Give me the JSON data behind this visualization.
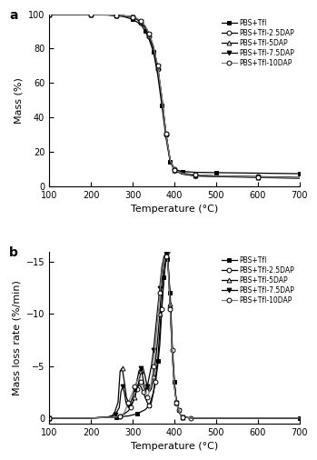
{
  "xlabel": "Temperature (°C)",
  "ylabel_a": "Mass (%)",
  "ylabel_b": "Mass loss rate (%/min)",
  "xlim": [
    100,
    700
  ],
  "ylim_a": [
    0,
    100
  ],
  "ylim_b": [
    -16,
    0.5
  ],
  "xticks": [
    100,
    200,
    300,
    400,
    500,
    600,
    700
  ],
  "yticks_a": [
    0,
    20,
    40,
    60,
    80,
    100
  ],
  "yticks_b": [
    -15,
    -10,
    -5,
    0
  ],
  "legend_labels": [
    "PBS+Tfl",
    "PBS+Tfl-2.5DAP",
    "PBS+Tfl-5DAP",
    "PBS+Tfl-7.5DAP",
    "PBS+Tfl-10DAP"
  ],
  "markers": [
    "s",
    "o",
    "^",
    "v",
    "o"
  ],
  "fillstyles": [
    "full",
    "none",
    "none",
    "full",
    "none"
  ],
  "colors": [
    "black",
    "black",
    "black",
    "black",
    "gray"
  ],
  "series_a": {
    "PBS+Tfl": [
      [
        100,
        99.8
      ],
      [
        150,
        99.8
      ],
      [
        200,
        99.7
      ],
      [
        240,
        99.5
      ],
      [
        260,
        99.2
      ],
      [
        280,
        98.5
      ],
      [
        300,
        97.0
      ],
      [
        320,
        94.0
      ],
      [
        330,
        90.0
      ],
      [
        340,
        85.0
      ],
      [
        350,
        78.0
      ],
      [
        360,
        65.0
      ],
      [
        370,
        47.0
      ],
      [
        380,
        28.0
      ],
      [
        390,
        14.0
      ],
      [
        400,
        9.5
      ],
      [
        420,
        8.5
      ],
      [
        450,
        8.0
      ],
      [
        500,
        7.8
      ],
      [
        600,
        7.5
      ],
      [
        700,
        7.2
      ]
    ],
    "PBS+Tfl-2.5DAP": [
      [
        100,
        99.9
      ],
      [
        150,
        99.9
      ],
      [
        200,
        99.8
      ],
      [
        240,
        99.6
      ],
      [
        260,
        99.3
      ],
      [
        280,
        99.0
      ],
      [
        300,
        98.2
      ],
      [
        310,
        97.0
      ],
      [
        320,
        95.0
      ],
      [
        330,
        92.0
      ],
      [
        340,
        87.0
      ],
      [
        350,
        80.0
      ],
      [
        360,
        68.0
      ],
      [
        370,
        50.0
      ],
      [
        380,
        30.0
      ],
      [
        390,
        15.0
      ],
      [
        400,
        10.0
      ],
      [
        420,
        7.5
      ],
      [
        450,
        6.5
      ],
      [
        500,
        6.0
      ],
      [
        600,
        5.5
      ],
      [
        700,
        5.0
      ]
    ],
    "PBS+Tfl-5DAP": [
      [
        100,
        99.9
      ],
      [
        150,
        99.9
      ],
      [
        200,
        99.8
      ],
      [
        240,
        99.6
      ],
      [
        260,
        99.3
      ],
      [
        280,
        99.0
      ],
      [
        300,
        98.3
      ],
      [
        310,
        97.2
      ],
      [
        320,
        95.5
      ],
      [
        330,
        92.5
      ],
      [
        340,
        87.5
      ],
      [
        350,
        80.5
      ],
      [
        360,
        69.0
      ],
      [
        370,
        51.0
      ],
      [
        380,
        30.5
      ],
      [
        390,
        15.0
      ],
      [
        400,
        9.5
      ],
      [
        420,
        7.0
      ],
      [
        450,
        6.0
      ],
      [
        500,
        5.5
      ],
      [
        600,
        5.0
      ],
      [
        700,
        4.5
      ]
    ],
    "PBS+Tfl-7.5DAP": [
      [
        100,
        99.9
      ],
      [
        150,
        99.9
      ],
      [
        200,
        99.8
      ],
      [
        240,
        99.6
      ],
      [
        260,
        99.4
      ],
      [
        280,
        99.1
      ],
      [
        300,
        98.4
      ],
      [
        310,
        97.4
      ],
      [
        320,
        95.8
      ],
      [
        330,
        93.0
      ],
      [
        340,
        88.0
      ],
      [
        350,
        81.0
      ],
      [
        360,
        69.5
      ],
      [
        370,
        51.5
      ],
      [
        380,
        30.0
      ],
      [
        390,
        14.5
      ],
      [
        400,
        9.0
      ],
      [
        420,
        7.0
      ],
      [
        450,
        5.9
      ],
      [
        500,
        5.7
      ],
      [
        600,
        5.3
      ],
      [
        700,
        4.8
      ]
    ],
    "PBS+Tfl-10DAP": [
      [
        100,
        99.9
      ],
      [
        150,
        99.9
      ],
      [
        200,
        99.8
      ],
      [
        240,
        99.6
      ],
      [
        260,
        99.4
      ],
      [
        280,
        99.1
      ],
      [
        300,
        98.4
      ],
      [
        310,
        97.5
      ],
      [
        320,
        96.0
      ],
      [
        330,
        93.2
      ],
      [
        340,
        88.5
      ],
      [
        350,
        81.5
      ],
      [
        360,
        70.0
      ],
      [
        370,
        52.0
      ],
      [
        380,
        30.5
      ],
      [
        390,
        15.0
      ],
      [
        400,
        9.5
      ],
      [
        420,
        7.3
      ],
      [
        450,
        6.5
      ],
      [
        500,
        5.9
      ],
      [
        600,
        5.3
      ],
      [
        700,
        4.8
      ]
    ]
  },
  "series_b": {
    "PBS+Tfl": [
      [
        100,
        0
      ],
      [
        200,
        0
      ],
      [
        260,
        -0.1
      ],
      [
        290,
        -0.2
      ],
      [
        310,
        -0.4
      ],
      [
        330,
        -0.8
      ],
      [
        340,
        -1.2
      ],
      [
        350,
        -2.5
      ],
      [
        360,
        -5.5
      ],
      [
        370,
        -11.0
      ],
      [
        375,
        -13.5
      ],
      [
        380,
        -15.2
      ],
      [
        383,
        -15.3
      ],
      [
        385,
        -14.5
      ],
      [
        390,
        -12.0
      ],
      [
        395,
        -7.0
      ],
      [
        400,
        -3.5
      ],
      [
        405,
        -1.5
      ],
      [
        410,
        -0.8
      ],
      [
        415,
        -0.3
      ],
      [
        420,
        -0.1
      ],
      [
        440,
        0
      ],
      [
        700,
        0
      ]
    ],
    "PBS+Tfl-2.5DAP": [
      [
        100,
        0
      ],
      [
        200,
        0
      ],
      [
        260,
        -0.1
      ],
      [
        270,
        -0.2
      ],
      [
        280,
        -0.4
      ],
      [
        290,
        -0.7
      ],
      [
        295,
        -1.0
      ],
      [
        300,
        -1.5
      ],
      [
        305,
        -2.0
      ],
      [
        310,
        -2.8
      ],
      [
        315,
        -3.2
      ],
      [
        320,
        -3.0
      ],
      [
        325,
        -2.5
      ],
      [
        330,
        -2.0
      ],
      [
        335,
        -1.5
      ],
      [
        340,
        -1.2
      ],
      [
        345,
        -1.5
      ],
      [
        350,
        -2.5
      ],
      [
        355,
        -3.5
      ],
      [
        360,
        -5.0
      ],
      [
        365,
        -7.0
      ],
      [
        370,
        -10.5
      ],
      [
        375,
        -13.5
      ],
      [
        380,
        -15.5
      ],
      [
        383,
        -16.0
      ],
      [
        385,
        -15.0
      ],
      [
        390,
        -11.0
      ],
      [
        395,
        -6.5
      ],
      [
        400,
        -3.5
      ],
      [
        405,
        -1.5
      ],
      [
        410,
        -0.8
      ],
      [
        415,
        -0.3
      ],
      [
        420,
        -0.1
      ],
      [
        440,
        0
      ],
      [
        700,
        0
      ]
    ],
    "PBS+Tfl-5DAP": [
      [
        100,
        0
      ],
      [
        200,
        0
      ],
      [
        240,
        -0.1
      ],
      [
        255,
        -0.3
      ],
      [
        265,
        -1.5
      ],
      [
        270,
        -4.5
      ],
      [
        275,
        -4.8
      ],
      [
        280,
        -3.5
      ],
      [
        285,
        -2.0
      ],
      [
        290,
        -1.5
      ],
      [
        295,
        -1.2
      ],
      [
        300,
        -1.5
      ],
      [
        305,
        -2.0
      ],
      [
        310,
        -2.8
      ],
      [
        315,
        -3.5
      ],
      [
        320,
        -4.5
      ],
      [
        325,
        -4.8
      ],
      [
        330,
        -4.0
      ],
      [
        335,
        -3.0
      ],
      [
        340,
        -2.5
      ],
      [
        345,
        -2.8
      ],
      [
        350,
        -4.0
      ],
      [
        355,
        -5.5
      ],
      [
        360,
        -7.5
      ],
      [
        365,
        -10.0
      ],
      [
        370,
        -13.0
      ],
      [
        375,
        -15.0
      ],
      [
        380,
        -15.8
      ],
      [
        383,
        -15.8
      ],
      [
        385,
        -15.0
      ],
      [
        390,
        -11.0
      ],
      [
        395,
        -6.5
      ],
      [
        400,
        -3.2
      ],
      [
        405,
        -1.5
      ],
      [
        410,
        -0.8
      ],
      [
        415,
        -0.3
      ],
      [
        420,
        -0.1
      ],
      [
        440,
        0
      ],
      [
        700,
        0
      ]
    ],
    "PBS+Tfl-7.5DAP": [
      [
        100,
        0
      ],
      [
        200,
        0
      ],
      [
        245,
        -0.1
      ],
      [
        258,
        -0.3
      ],
      [
        268,
        -1.0
      ],
      [
        272,
        -2.5
      ],
      [
        276,
        -3.0
      ],
      [
        280,
        -2.5
      ],
      [
        284,
        -1.5
      ],
      [
        290,
        -1.2
      ],
      [
        295,
        -1.5
      ],
      [
        300,
        -2.0
      ],
      [
        305,
        -2.8
      ],
      [
        310,
        -3.5
      ],
      [
        315,
        -4.5
      ],
      [
        320,
        -4.8
      ],
      [
        325,
        -3.8
      ],
      [
        330,
        -2.5
      ],
      [
        335,
        -3.0
      ],
      [
        340,
        -4.0
      ],
      [
        345,
        -5.0
      ],
      [
        350,
        -6.5
      ],
      [
        355,
        -8.5
      ],
      [
        360,
        -10.5
      ],
      [
        365,
        -12.5
      ],
      [
        370,
        -14.5
      ],
      [
        375,
        -15.5
      ],
      [
        380,
        -15.8
      ],
      [
        383,
        -15.8
      ],
      [
        385,
        -14.5
      ],
      [
        390,
        -10.5
      ],
      [
        395,
        -6.0
      ],
      [
        400,
        -3.0
      ],
      [
        405,
        -1.5
      ],
      [
        410,
        -0.8
      ],
      [
        415,
        -0.3
      ],
      [
        420,
        -0.1
      ],
      [
        440,
        0
      ],
      [
        700,
        0
      ]
    ],
    "PBS+Tfl-10DAP": [
      [
        100,
        0
      ],
      [
        200,
        0
      ],
      [
        260,
        -0.1
      ],
      [
        270,
        -0.2
      ],
      [
        280,
        -0.5
      ],
      [
        285,
        -1.0
      ],
      [
        290,
        -1.5
      ],
      [
        295,
        -2.0
      ],
      [
        300,
        -2.5
      ],
      [
        305,
        -3.0
      ],
      [
        310,
        -3.5
      ],
      [
        315,
        -3.8
      ],
      [
        320,
        -3.5
      ],
      [
        325,
        -3.0
      ],
      [
        330,
        -2.5
      ],
      [
        335,
        -2.0
      ],
      [
        340,
        -2.5
      ],
      [
        345,
        -3.5
      ],
      [
        350,
        -5.0
      ],
      [
        355,
        -7.0
      ],
      [
        360,
        -9.5
      ],
      [
        365,
        -12.0
      ],
      [
        370,
        -14.0
      ],
      [
        375,
        -15.2
      ],
      [
        380,
        -15.5
      ],
      [
        383,
        -15.5
      ],
      [
        385,
        -14.5
      ],
      [
        390,
        -10.5
      ],
      [
        395,
        -6.0
      ],
      [
        400,
        -3.0
      ],
      [
        405,
        -1.5
      ],
      [
        410,
        -0.8
      ],
      [
        415,
        -0.3
      ],
      [
        420,
        -0.1
      ],
      [
        440,
        0
      ],
      [
        700,
        0
      ]
    ]
  }
}
